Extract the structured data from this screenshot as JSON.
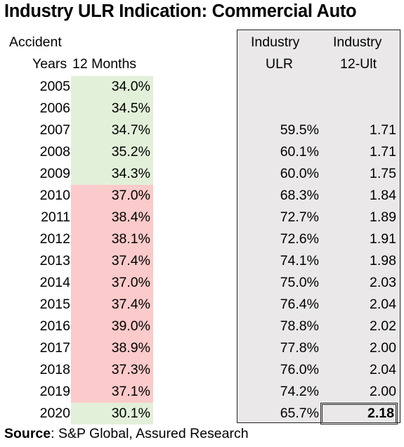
{
  "title": "Industry ULR Indication: Commercial Auto",
  "headers": {
    "accident": "Accident",
    "years": "Years",
    "months": "12 Months",
    "industry_ulr_top": "Industry",
    "industry_ulr_bottom": "ULR",
    "industry_ult_top": "Industry",
    "industry_ult_bottom": "12-Ult"
  },
  "rows": [
    {
      "year": "2005",
      "m12": "34.0%",
      "ulr": "",
      "ult": "",
      "shade": "green"
    },
    {
      "year": "2006",
      "m12": "34.5%",
      "ulr": "",
      "ult": "",
      "shade": "green"
    },
    {
      "year": "2007",
      "m12": "34.7%",
      "ulr": "59.5%",
      "ult": "1.71",
      "shade": "green"
    },
    {
      "year": "2008",
      "m12": "35.2%",
      "ulr": "60.1%",
      "ult": "1.71",
      "shade": "green"
    },
    {
      "year": "2009",
      "m12": "34.3%",
      "ulr": "60.0%",
      "ult": "1.75",
      "shade": "green"
    },
    {
      "year": "2010",
      "m12": "37.0%",
      "ulr": "68.3%",
      "ult": "1.84",
      "shade": "red"
    },
    {
      "year": "2011",
      "m12": "38.4%",
      "ulr": "72.7%",
      "ult": "1.89",
      "shade": "red"
    },
    {
      "year": "2012",
      "m12": "38.1%",
      "ulr": "72.6%",
      "ult": "1.91",
      "shade": "red"
    },
    {
      "year": "2013",
      "m12": "37.4%",
      "ulr": "74.1%",
      "ult": "1.98",
      "shade": "red"
    },
    {
      "year": "2014",
      "m12": "37.0%",
      "ulr": "75.0%",
      "ult": "2.03",
      "shade": "red"
    },
    {
      "year": "2015",
      "m12": "37.4%",
      "ulr": "76.4%",
      "ult": "2.04",
      "shade": "red"
    },
    {
      "year": "2016",
      "m12": "39.0%",
      "ulr": "78.8%",
      "ult": "2.02",
      "shade": "red"
    },
    {
      "year": "2017",
      "m12": "38.9%",
      "ulr": "77.8%",
      "ult": "2.00",
      "shade": "red"
    },
    {
      "year": "2018",
      "m12": "37.3%",
      "ulr": "76.0%",
      "ult": "2.04",
      "shade": "red"
    },
    {
      "year": "2019",
      "m12": "37.1%",
      "ulr": "74.2%",
      "ult": "2.00",
      "shade": "red"
    },
    {
      "year": "2020",
      "m12": "30.1%",
      "ulr": "65.7%",
      "ult": "2.18",
      "shade": "green",
      "highlight": true
    }
  ],
  "source": {
    "label": "Source",
    "text": ": S&P Global, Assured Research"
  },
  "colors": {
    "green": "#e3f0d9",
    "red": "#fbcaca",
    "panel": "#eae8e9"
  }
}
